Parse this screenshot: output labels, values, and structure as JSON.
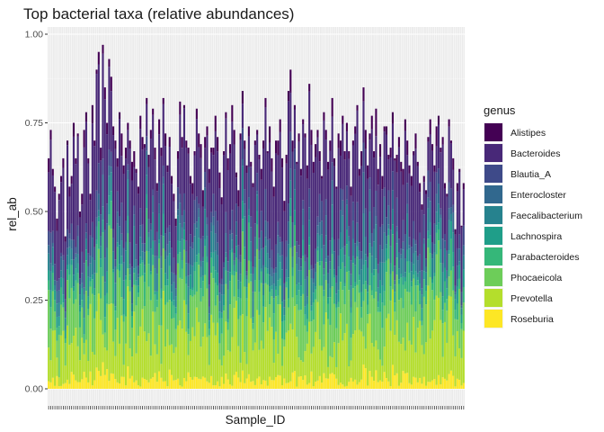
{
  "chart_data": {
    "type": "bar",
    "stacked": true,
    "title": "Top bacterial taxa (relative abundances)",
    "xlabel": "Sample_ID",
    "ylabel": "rel_ab",
    "ylim": [
      0,
      1
    ],
    "yticks": [
      0.0,
      0.25,
      0.5,
      0.75,
      1.0
    ],
    "ytick_labels": [
      "0.00",
      "0.25",
      "0.50",
      "0.75",
      "1.00"
    ],
    "n_samples": 200,
    "x_tick_labels_visible": false,
    "grid": true,
    "legend": {
      "title": "genus",
      "position": "right"
    },
    "genera": [
      {
        "name": "Alistipes",
        "color": "#440154"
      },
      {
        "name": "Bacteroides",
        "color": "#482878"
      },
      {
        "name": "Blautia_A",
        "color": "#3E4A89"
      },
      {
        "name": "Enterocloster",
        "color": "#31688E"
      },
      {
        "name": "Faecalibacterium",
        "color": "#26828E"
      },
      {
        "name": "Lachnospira",
        "color": "#1F9E89"
      },
      {
        "name": "Parabacteroides",
        "color": "#35B779"
      },
      {
        "name": "Phocaeicola",
        "color": "#6DCD59"
      },
      {
        "name": "Prevotella",
        "color": "#B4DE2C"
      },
      {
        "name": "Roseburia",
        "color": "#FDE725"
      }
    ],
    "sample_totals": [
      0.65,
      0.73,
      0.62,
      0.57,
      0.48,
      0.55,
      0.6,
      0.65,
      0.43,
      0.7,
      0.57,
      0.6,
      0.75,
      0.65,
      0.72,
      0.5,
      0.55,
      0.73,
      0.78,
      0.65,
      0.55,
      0.8,
      0.7,
      0.9,
      0.95,
      0.68,
      0.97,
      0.85,
      0.75,
      0.93,
      0.88,
      0.74,
      0.7,
      0.65,
      0.78,
      0.72,
      0.63,
      0.68,
      0.75,
      0.7,
      0.64,
      0.67,
      0.62,
      0.57,
      0.77,
      0.71,
      0.69,
      0.82,
      0.66,
      0.73,
      0.79,
      0.68,
      0.58,
      0.76,
      0.68,
      0.82,
      0.72,
      0.63,
      0.71,
      0.6,
      0.55,
      0.48,
      0.67,
      0.81,
      0.71,
      0.8,
      0.7,
      0.68,
      0.6,
      0.58,
      0.67,
      0.79,
      0.72,
      0.69,
      0.56,
      0.71,
      0.74,
      0.62,
      0.68,
      0.68,
      0.77,
      0.71,
      0.61,
      0.54,
      0.67,
      0.78,
      0.65,
      0.69,
      0.8,
      0.73,
      0.61,
      0.56,
      0.72,
      0.84,
      0.7,
      0.63,
      0.74,
      0.64,
      0.58,
      0.7,
      0.73,
      0.66,
      0.62,
      0.7,
      0.82,
      0.67,
      0.74,
      0.65,
      0.57,
      0.7,
      0.7,
      0.76,
      0.65,
      0.53,
      0.66,
      0.84,
      0.9,
      0.7,
      0.8,
      0.64,
      0.72,
      0.62,
      0.76,
      0.72,
      0.63,
      0.86,
      0.73,
      0.64,
      0.69,
      0.73,
      0.67,
      0.6,
      0.78,
      0.73,
      0.64,
      0.7,
      0.82,
      0.65,
      0.57,
      0.72,
      0.7,
      0.77,
      0.67,
      0.75,
      0.67,
      0.57,
      0.7,
      0.74,
      0.8,
      0.62,
      0.67,
      0.85,
      0.73,
      0.63,
      0.72,
      0.77,
      0.67,
      0.79,
      0.62,
      0.69,
      0.6,
      0.74,
      0.74,
      0.66,
      0.68,
      0.78,
      0.65,
      0.66,
      0.71,
      0.64,
      0.62,
      0.76,
      0.7,
      0.63,
      0.6,
      0.67,
      0.72,
      0.64,
      0.58,
      0.52,
      0.6,
      0.56,
      0.71,
      0.76,
      0.69,
      0.63,
      0.74,
      0.77,
      0.68,
      0.71,
      0.58,
      0.55,
      0.76,
      0.7,
      0.65,
      0.45,
      0.58,
      0.62,
      0.46,
      0.58
    ]
  }
}
